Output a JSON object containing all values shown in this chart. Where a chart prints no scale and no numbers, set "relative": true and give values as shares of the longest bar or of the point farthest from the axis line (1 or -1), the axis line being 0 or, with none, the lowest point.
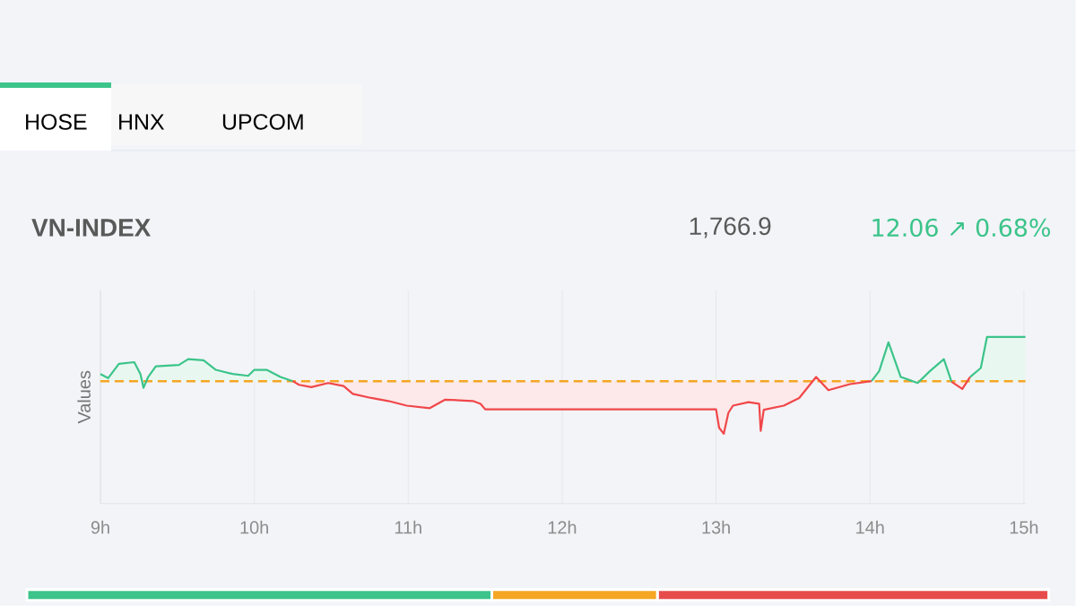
{
  "chart_data": [
    {
      "type": "line",
      "title": "VN-INDEX",
      "ylabel": "Values",
      "relative": true,
      "grid": "x",
      "marker": "none",
      "line_style": "solid",
      "annotations": [
        "HOSE",
        "HNX",
        "UPCOM",
        "1,766.9",
        "12.06 ↗ 0.68%"
      ],
      "xlim": [
        9,
        15.01
      ],
      "xticks": [
        {
          "value": 9,
          "label": "9h"
        },
        {
          "value": 10,
          "label": "10h"
        },
        {
          "value": 11,
          "label": "11h"
        },
        {
          "value": 12,
          "label": "12h"
        },
        {
          "value": 13,
          "label": "13h"
        },
        {
          "value": 14,
          "label": "14h"
        },
        {
          "value": 15,
          "label": "15h"
        }
      ],
      "x": [
        9.0,
        9.05,
        9.12,
        9.22,
        9.26,
        9.28,
        9.31,
        9.36,
        9.51,
        9.57,
        9.67,
        9.75,
        9.86,
        9.96,
        10.0,
        10.08,
        10.17,
        10.25,
        10.29,
        10.37,
        10.48,
        10.58,
        10.64,
        10.76,
        10.87,
        10.99,
        11.14,
        11.24,
        11.42,
        11.47,
        11.5,
        13.0,
        13.02,
        13.05,
        13.08,
        13.11,
        13.21,
        13.28,
        13.29,
        13.31,
        13.44,
        13.54,
        13.65,
        13.73,
        13.87,
        14.01,
        14.06,
        14.12,
        14.2,
        14.31,
        14.39,
        14.48,
        14.53,
        14.6,
        14.65,
        14.72,
        14.76,
        15.01
      ],
      "ref_lines": [
        {
          "axis": "y",
          "value": 0.735,
          "color": "#f5a623",
          "line_style": "dashed"
        }
      ],
      "series": [
        {
          "type": "area",
          "color": "#3cc48a",
          "values": [
            0.778,
            0.753,
            0.839,
            0.849,
            0.778,
            0.695,
            0.76,
            0.824,
            0.832,
            0.867,
            0.86,
            0.803,
            0.778,
            0.767,
            0.803,
            0.803,
            0.76,
            0.735,
            null,
            null,
            null,
            null,
            null,
            null,
            null,
            null,
            null,
            null,
            null,
            null,
            null,
            null,
            null,
            null,
            null,
            null,
            null,
            null,
            null,
            null,
            null,
            null,
            null,
            null,
            null,
            0.735,
            0.796,
            0.968,
            0.76,
            0.724,
            0.796,
            0.867,
            0.731,
            null,
            0.76,
            0.814,
            1.0,
            1.0
          ]
        },
        {
          "type": "area",
          "color": "#f0474a",
          "values": [
            null,
            null,
            null,
            null,
            null,
            null,
            null,
            null,
            null,
            null,
            null,
            null,
            null,
            null,
            null,
            null,
            null,
            0.735,
            0.713,
            0.699,
            0.724,
            0.706,
            0.659,
            0.634,
            0.616,
            0.588,
            0.573,
            0.624,
            0.616,
            0.599,
            0.566,
            0.566,
            0.455,
            0.419,
            0.545,
            0.588,
            0.609,
            0.599,
            0.437,
            0.563,
            0.588,
            0.634,
            0.76,
            0.681,
            0.717,
            0.735,
            null,
            null,
            null,
            null,
            null,
            null,
            0.731,
            0.688,
            0.76,
            null,
            null,
            null
          ]
        }
      ]
    },
    {
      "type": "bar",
      "orientation": "horizontal",
      "stacked": true,
      "relative": true,
      "categories": [
        null
      ],
      "series": [
        {
          "color": "#3cc48a",
          "values": [
            0.455
          ]
        },
        {
          "color": "#f5a623",
          "values": [
            0.162
          ]
        },
        {
          "color": "#e74c4c",
          "values": [
            0.383
          ]
        }
      ]
    }
  ]
}
